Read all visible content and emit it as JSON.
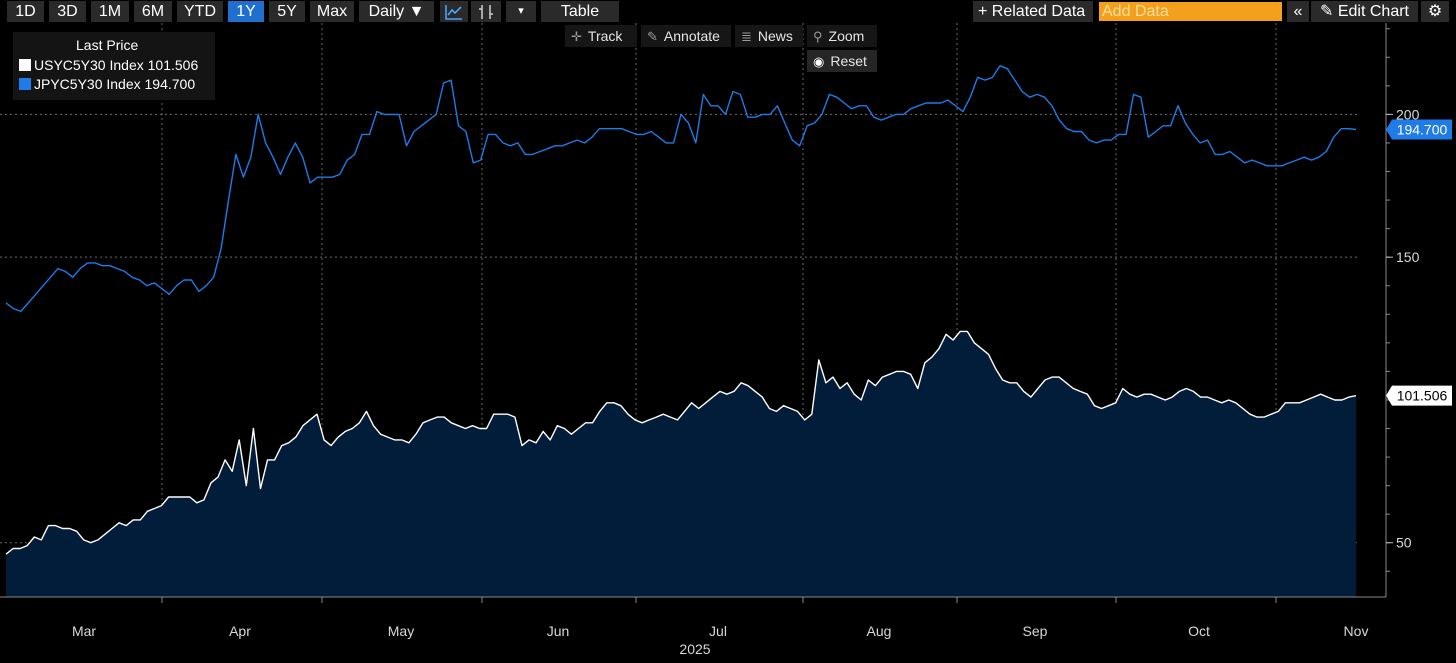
{
  "toolbar": {
    "ranges": [
      "1D",
      "3D",
      "1M",
      "6M",
      "YTD",
      "1Y",
      "5Y",
      "Max"
    ],
    "selected_range": "1Y",
    "frequency": "Daily ▼",
    "table_label": "Table",
    "related_label": "+ Related Data",
    "add_data_placeholder": "Add Data",
    "collapse_icon": "«",
    "edit_chart_label": "✎ Edit Chart",
    "settings_icon": "⚙"
  },
  "subtoolbar": {
    "track": "Track",
    "annotate": "Annotate",
    "news": "News",
    "zoom": "Zoom",
    "reset": "Reset"
  },
  "legend": {
    "header": "Last Price",
    "items": [
      {
        "name": "USYC5Y30 Index",
        "value": "101.506",
        "color": "#ffffff"
      },
      {
        "name": "JPYC5Y30 Index",
        "value": "194.700",
        "color": "#1e7be8"
      }
    ]
  },
  "chart_data": {
    "type": "line",
    "title": "",
    "xlabel": "2025",
    "ylabel": "",
    "x_tick_labels": [
      "Mar",
      "Apr",
      "May",
      "Jun",
      "Jul",
      "Aug",
      "Sep",
      "Oct",
      "Nov"
    ],
    "y_ticks": [
      50,
      150,
      200
    ],
    "ylim": [
      31,
      232
    ],
    "last_value_labels": [
      "194.700",
      "101.506"
    ],
    "series": [
      {
        "name": "JPYC5Y30 Index",
        "color": "#1e7be8",
        "style": "line",
        "last": 194.7,
        "values": [
          134,
          132,
          131,
          134,
          137,
          140,
          143,
          146,
          145,
          143,
          146,
          148,
          148,
          147,
          147,
          146,
          145,
          143,
          142,
          140,
          141,
          139,
          137,
          140,
          142,
          142,
          138,
          140,
          143,
          153,
          170,
          186,
          178,
          185,
          200,
          190,
          185,
          179,
          185,
          190,
          185,
          176,
          178,
          178,
          178,
          179,
          184,
          186,
          193,
          193,
          201,
          200,
          200,
          200,
          189,
          194,
          196,
          198,
          200,
          211,
          212,
          196,
          194,
          183,
          184,
          193,
          193,
          190,
          189,
          190,
          186,
          186,
          187,
          188,
          189,
          189,
          190,
          191,
          190,
          192,
          195,
          195,
          195,
          195,
          194,
          193,
          193,
          194,
          192,
          190,
          190,
          200,
          197,
          190,
          207,
          203,
          203,
          200,
          208,
          207,
          199,
          199,
          200,
          200,
          203,
          197,
          191,
          189,
          196,
          197,
          200,
          207,
          206,
          204,
          202,
          203,
          203,
          199,
          198,
          199,
          200,
          200,
          202,
          203,
          204,
          204,
          204,
          205,
          203,
          201,
          206,
          213,
          212,
          213,
          217,
          216,
          212,
          208,
          206,
          207,
          206,
          203,
          198,
          195,
          194,
          194,
          191,
          190,
          191,
          191,
          193,
          193,
          207,
          206,
          192,
          194,
          196,
          196,
          203,
          197,
          193,
          190,
          191,
          186,
          186,
          187,
          185,
          183,
          184,
          183,
          182,
          182,
          182,
          183,
          184,
          185,
          184,
          185,
          187,
          192,
          195,
          195,
          194.7
        ]
      },
      {
        "name": "USYC5Y30 Index",
        "color": "#ffffff",
        "style": "area",
        "fill": "#021d3a",
        "last": 101.506,
        "values": [
          46,
          48,
          48,
          49,
          52,
          51,
          56,
          56,
          55,
          55,
          54,
          51,
          50,
          51,
          53,
          55,
          57,
          56,
          58,
          58,
          61,
          62,
          63,
          66,
          66,
          66,
          66,
          64,
          65,
          71,
          73,
          79,
          75,
          86,
          70,
          90,
          69,
          79,
          79,
          84,
          85,
          87,
          91,
          93,
          95,
          86,
          84,
          87,
          89,
          90,
          92,
          96,
          91,
          88,
          87,
          86,
          86,
          85,
          88,
          92,
          93,
          94,
          94,
          92,
          91,
          90,
          91,
          90,
          90,
          95,
          95,
          95,
          94,
          84,
          86,
          85,
          89,
          86,
          91,
          90,
          88,
          90,
          92,
          92,
          96,
          99,
          99,
          98,
          95,
          93,
          92,
          93,
          94,
          95,
          94,
          93,
          96,
          99,
          97,
          99,
          101,
          103,
          102,
          103,
          106,
          105,
          103,
          101,
          97,
          96,
          98,
          97,
          96,
          93,
          95,
          114,
          106,
          108,
          104,
          106,
          102,
          100,
          107,
          105,
          108,
          109,
          110,
          110,
          109,
          104,
          113,
          115,
          118,
          123,
          121,
          124,
          124,
          120,
          118,
          116,
          111,
          107,
          106,
          106,
          103,
          101,
          104,
          107,
          108,
          108,
          106,
          104,
          103,
          102,
          98,
          97,
          98,
          99,
          104,
          102,
          101,
          102,
          102,
          101,
          100,
          101,
          103,
          104,
          103,
          101,
          101,
          100,
          99,
          100,
          99,
          97,
          95,
          94,
          94,
          95,
          96,
          99,
          99,
          99,
          100,
          101,
          102,
          101,
          100,
          100,
          101,
          101.506
        ]
      }
    ]
  }
}
